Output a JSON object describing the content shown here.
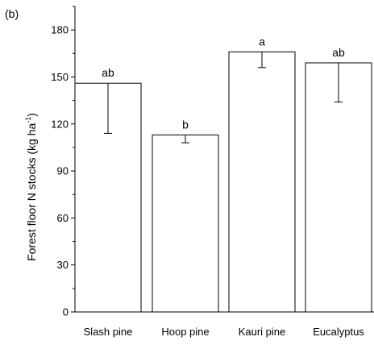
{
  "panel_label": "(b)",
  "chart_data": {
    "type": "bar",
    "categories": [
      "Slash pine",
      "Hoop pine",
      "Kauri pine",
      "Eucalyptus"
    ],
    "values": [
      146,
      113,
      166,
      159
    ],
    "error_low": [
      114,
      108,
      156,
      134
    ],
    "error_high": [
      146,
      113,
      166,
      159
    ],
    "significance": [
      "ab",
      "b",
      "a",
      "ab"
    ],
    "ylabel": {
      "main": "Forest floor N stocks (kg ha",
      "superscript": "-1",
      "close": ")"
    },
    "xlabel": "",
    "ylim": [
      0,
      195
    ],
    "yticks": [
      0,
      30,
      60,
      90,
      120,
      150,
      180
    ],
    "yticklabels": [
      "0",
      "30",
      "60",
      "90",
      "120",
      "150",
      "180"
    ],
    "y_minor_step": 15,
    "grid": false,
    "legend": "none"
  }
}
